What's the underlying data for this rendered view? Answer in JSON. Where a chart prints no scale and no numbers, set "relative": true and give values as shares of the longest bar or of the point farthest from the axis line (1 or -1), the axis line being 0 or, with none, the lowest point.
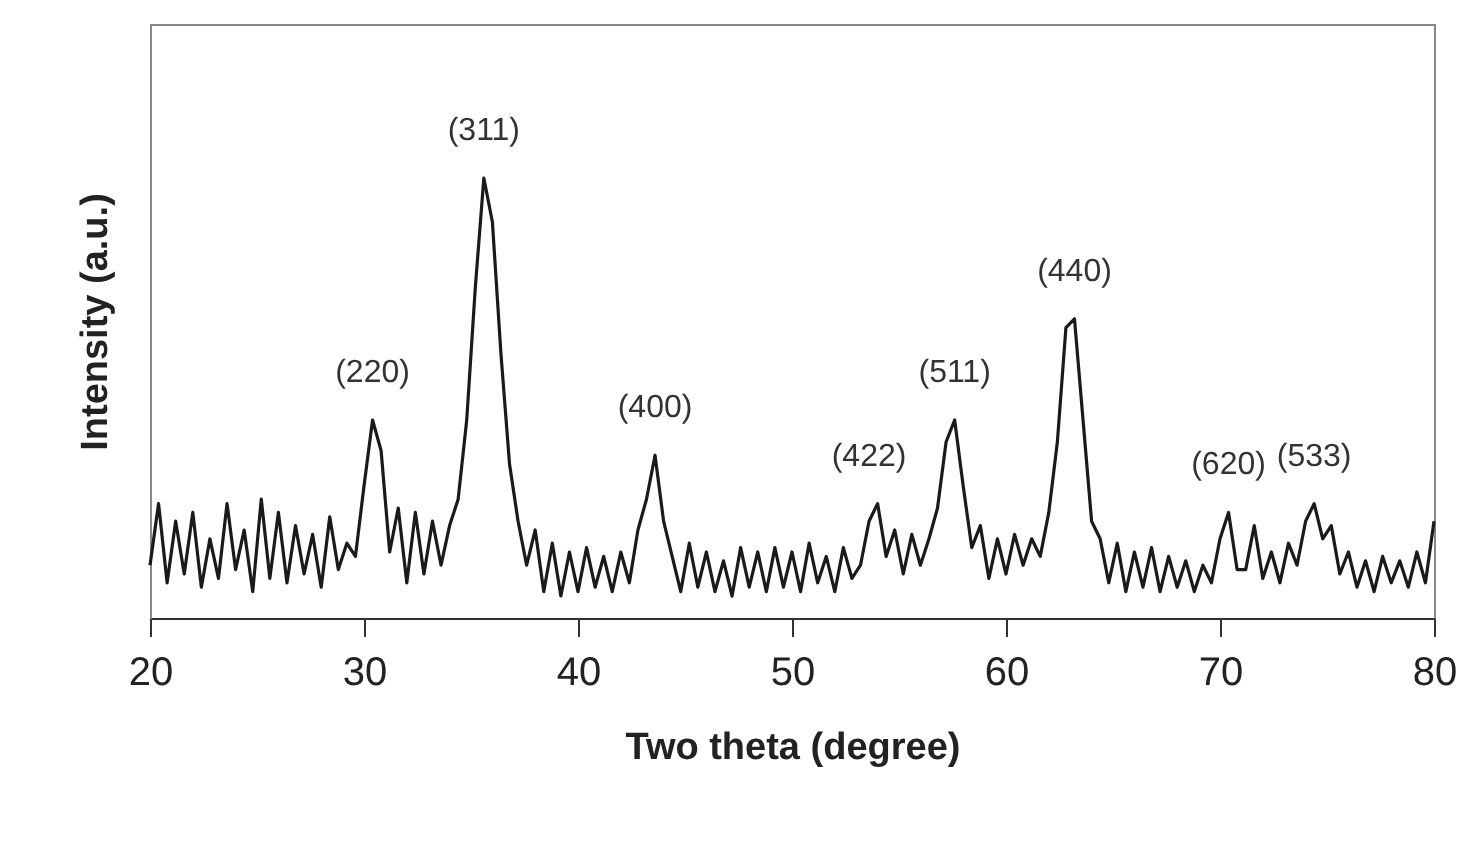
{
  "chart_data": {
    "type": "line",
    "relative": true,
    "xlabel": "Two theta (degree)",
    "ylabel": "Intensity (a.u.)",
    "xlim": [
      20,
      80
    ],
    "xticks": [
      20,
      30,
      40,
      50,
      60,
      70,
      80
    ],
    "grid": false,
    "marker": "none",
    "line_style": "solid",
    "x": [
      20.0,
      20.4,
      20.8,
      21.2,
      21.6,
      22.0,
      22.4,
      22.8,
      23.2,
      23.6,
      24.0,
      24.4,
      24.8,
      25.2,
      25.6,
      26.0,
      26.4,
      26.8,
      27.2,
      27.6,
      28.0,
      28.4,
      28.8,
      29.2,
      29.6,
      30.0,
      30.4,
      30.8,
      31.2,
      31.6,
      32.0,
      32.4,
      32.8,
      33.2,
      33.6,
      34.0,
      34.4,
      34.8,
      35.2,
      35.6,
      36.0,
      36.4,
      36.8,
      37.2,
      37.6,
      38.0,
      38.4,
      38.8,
      39.2,
      39.6,
      40.0,
      40.4,
      40.8,
      41.2,
      41.6,
      42.0,
      42.4,
      42.8,
      43.2,
      43.6,
      44.0,
      44.4,
      44.8,
      45.2,
      45.6,
      46.0,
      46.4,
      46.8,
      47.2,
      47.6,
      48.0,
      48.4,
      48.8,
      49.2,
      49.6,
      50.0,
      50.4,
      50.8,
      51.2,
      51.6,
      52.0,
      52.4,
      52.8,
      53.2,
      53.6,
      54.0,
      54.4,
      54.8,
      55.2,
      55.6,
      56.0,
      56.4,
      56.8,
      57.2,
      57.6,
      58.0,
      58.4,
      58.8,
      59.2,
      59.6,
      60.0,
      60.4,
      60.8,
      61.2,
      61.6,
      62.0,
      62.4,
      62.8,
      63.2,
      63.6,
      64.0,
      64.4,
      64.8,
      65.2,
      65.6,
      66.0,
      66.4,
      66.8,
      67.2,
      67.6,
      68.0,
      68.4,
      68.8,
      69.2,
      69.6,
      70.0,
      70.4,
      70.8,
      71.2,
      71.6,
      72.0,
      72.4,
      72.8,
      73.2,
      73.6,
      74.0,
      74.4,
      74.8,
      75.2,
      75.6,
      76.0,
      76.4,
      76.8,
      77.2,
      77.6,
      78.0,
      78.4,
      78.8,
      79.2,
      79.6,
      80.0
    ],
    "series": [
      {
        "color": "#1a1a1a",
        "values": [
          0.12,
          0.26,
          0.08,
          0.22,
          0.1,
          0.24,
          0.07,
          0.18,
          0.09,
          0.26,
          0.11,
          0.2,
          0.06,
          0.27,
          0.09,
          0.24,
          0.08,
          0.21,
          0.1,
          0.19,
          0.07,
          0.23,
          0.11,
          0.17,
          0.14,
          0.3,
          0.45,
          0.38,
          0.15,
          0.25,
          0.08,
          0.24,
          0.1,
          0.22,
          0.12,
          0.21,
          0.27,
          0.45,
          0.75,
          1.0,
          0.9,
          0.6,
          0.35,
          0.22,
          0.12,
          0.2,
          0.06,
          0.17,
          0.05,
          0.15,
          0.06,
          0.16,
          0.07,
          0.14,
          0.06,
          0.15,
          0.08,
          0.2,
          0.27,
          0.37,
          0.22,
          0.14,
          0.06,
          0.17,
          0.07,
          0.15,
          0.06,
          0.13,
          0.05,
          0.16,
          0.07,
          0.15,
          0.06,
          0.16,
          0.07,
          0.15,
          0.06,
          0.17,
          0.08,
          0.14,
          0.06,
          0.16,
          0.09,
          0.12,
          0.22,
          0.26,
          0.14,
          0.2,
          0.1,
          0.19,
          0.12,
          0.18,
          0.25,
          0.4,
          0.45,
          0.3,
          0.16,
          0.21,
          0.09,
          0.18,
          0.1,
          0.19,
          0.12,
          0.18,
          0.14,
          0.24,
          0.4,
          0.66,
          0.68,
          0.45,
          0.22,
          0.18,
          0.08,
          0.17,
          0.06,
          0.15,
          0.07,
          0.16,
          0.06,
          0.14,
          0.07,
          0.13,
          0.06,
          0.12,
          0.08,
          0.18,
          0.24,
          0.11,
          0.11,
          0.21,
          0.09,
          0.15,
          0.08,
          0.17,
          0.12,
          0.22,
          0.26,
          0.18,
          0.21,
          0.1,
          0.15,
          0.07,
          0.13,
          0.06,
          0.14,
          0.08,
          0.13,
          0.07,
          0.15,
          0.08,
          0.22
        ]
      }
    ],
    "annotations": [
      {
        "text": "(220)",
        "x": 30.4,
        "y": 0.45
      },
      {
        "text": "(311)",
        "x": 35.6,
        "y": 1.0
      },
      {
        "text": "(400)",
        "x": 43.6,
        "y": 0.37
      },
      {
        "text": "(422)",
        "x": 53.6,
        "y": 0.26
      },
      {
        "text": "(511)",
        "x": 57.6,
        "y": 0.45
      },
      {
        "text": "(440)",
        "x": 63.2,
        "y": 0.68
      },
      {
        "text": "(620)",
        "x": 70.4,
        "y": 0.24
      },
      {
        "text": "(533)",
        "x": 74.4,
        "y": 0.26
      }
    ]
  }
}
